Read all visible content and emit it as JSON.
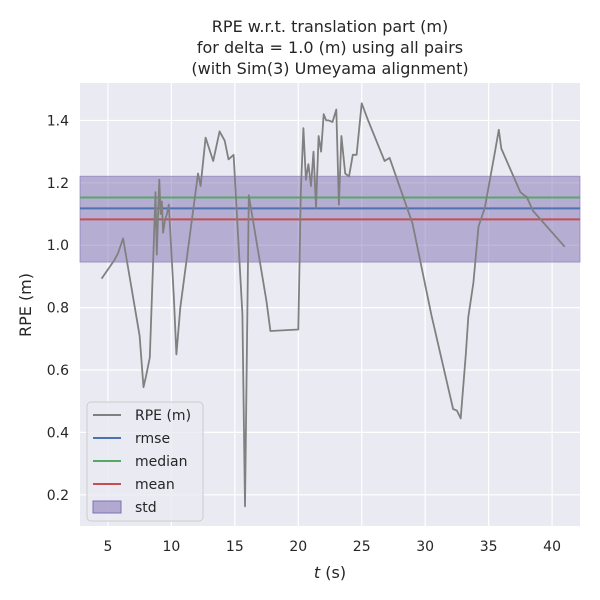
{
  "chart_data": {
    "type": "line",
    "title": [
      "RPE w.r.t. translation part (m)",
      "for delta = 1.0 (m) using all pairs",
      "(with Sim(3) Umeyama alignment)"
    ],
    "xlabel_italic": "t",
    "xlabel_rest": " (s)",
    "ylabel": "RPE (m)",
    "xlim": [
      2.8,
      42.2
    ],
    "ylim": [
      0.1,
      1.52
    ],
    "xticks": [
      5,
      10,
      15,
      20,
      25,
      30,
      35,
      40
    ],
    "yticks": [
      0.2,
      0.4,
      0.6,
      0.8,
      1.0,
      1.2,
      1.4
    ],
    "ytick_labels": [
      "0.2",
      "0.4",
      "0.6",
      "0.8",
      "1.0",
      "1.2",
      "1.4"
    ],
    "grid": true,
    "legend_position": "lower-left",
    "colors": {
      "background": "#eaeaf2",
      "grid": "#ffffff",
      "rpe": "#808080",
      "rmse": "#4c72b0",
      "median": "#55a868",
      "mean": "#c44e52",
      "std": "#8172b2"
    },
    "stats": {
      "rmse": 1.118,
      "median": 1.153,
      "mean": 1.083,
      "std_low": 0.946,
      "std_high": 1.221
    },
    "legend": [
      {
        "key": "rpe",
        "label": "RPE (m)",
        "kind": "line"
      },
      {
        "key": "rmse",
        "label": "rmse",
        "kind": "line"
      },
      {
        "key": "median",
        "label": "median",
        "kind": "line"
      },
      {
        "key": "mean",
        "label": "mean",
        "kind": "line"
      },
      {
        "key": "std",
        "label": "std",
        "kind": "patch"
      }
    ],
    "series": [
      {
        "key": "rpe",
        "x": [
          4.5,
          5.5,
          5.8,
          6.2,
          7.5,
          7.8,
          8.0,
          8.3,
          8.6,
          8.75,
          8.85,
          8.95,
          9.05,
          9.15,
          9.25,
          9.35,
          9.5,
          9.65,
          9.8,
          10.2,
          10.4,
          10.7,
          12.1,
          12.3,
          12.7,
          13.3,
          13.8,
          14.2,
          14.5,
          14.9,
          15.6,
          15.8,
          16.1,
          17.5,
          17.8,
          20.0,
          20.2,
          20.4,
          20.6,
          20.8,
          21.0,
          21.2,
          21.4,
          21.6,
          21.8,
          22.0,
          22.2,
          22.4,
          22.7,
          23.0,
          23.2,
          23.4,
          23.7,
          24.0,
          24.3,
          24.6,
          25.0,
          25.5,
          26.8,
          27.2,
          29.0,
          30.5,
          32.2,
          32.5,
          32.8,
          33.2,
          33.4,
          33.8,
          34.2,
          34.7,
          35.5,
          35.8,
          36.0,
          37.5,
          37.8,
          38.0,
          38.5,
          41.0
        ],
        "y": [
          0.893,
          0.952,
          0.975,
          1.022,
          0.71,
          0.545,
          0.58,
          0.64,
          0.99,
          1.17,
          0.97,
          1.09,
          1.21,
          1.1,
          1.14,
          1.04,
          1.08,
          1.1,
          1.13,
          0.83,
          0.65,
          0.8,
          1.23,
          1.19,
          1.345,
          1.27,
          1.365,
          1.335,
          1.275,
          1.29,
          0.78,
          0.163,
          1.16,
          0.82,
          0.725,
          0.73,
          1.17,
          1.375,
          1.21,
          1.26,
          1.19,
          1.3,
          1.12,
          1.35,
          1.3,
          1.42,
          1.4,
          1.4,
          1.395,
          1.435,
          1.13,
          1.35,
          1.23,
          1.22,
          1.29,
          1.29,
          1.455,
          1.4,
          1.27,
          1.28,
          1.07,
          0.775,
          0.475,
          0.47,
          0.445,
          0.65,
          0.77,
          0.88,
          1.06,
          1.12,
          1.3,
          1.37,
          1.31,
          1.17,
          1.16,
          1.155,
          1.11,
          0.995
        ]
      }
    ]
  }
}
